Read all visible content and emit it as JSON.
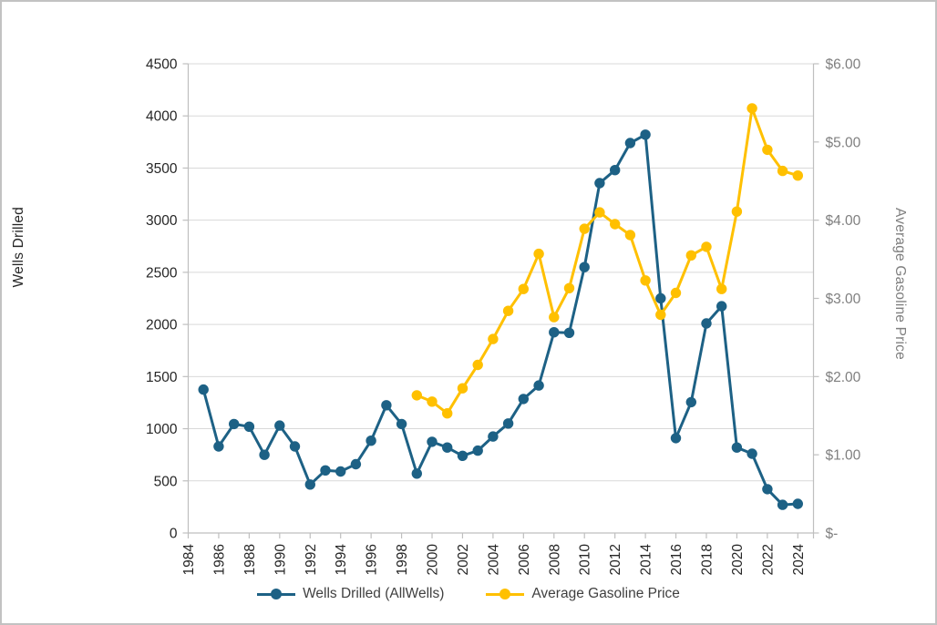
{
  "chart_data": {
    "type": "line",
    "title": "",
    "legend_position": "bottom",
    "grid": "horizontal",
    "x_axis": {
      "tick_labels": [
        "1984",
        "1986",
        "1988",
        "1990",
        "1992",
        "1994",
        "1996",
        "1998",
        "2000",
        "2002",
        "2004",
        "2006",
        "2008",
        "2010",
        "2012",
        "2014",
        "2016",
        "2018",
        "2020",
        "2022",
        "2024"
      ],
      "start_year": 1984,
      "end_year": 2024,
      "label_rotation_deg": -90
    },
    "y_axis_left": {
      "label": "Wells Drilled",
      "min": 0,
      "max": 4500,
      "step": 500,
      "tick_labels": [
        "0",
        "500",
        "1000",
        "1500",
        "2000",
        "2500",
        "3000",
        "3500",
        "4000",
        "4500"
      ]
    },
    "y_axis_right": {
      "label": "Average Gasoline Price",
      "min": 0,
      "max": 6,
      "step": 1,
      "tick_labels": [
        "$-",
        "$1.00",
        "$2.00",
        "$3.00",
        "$4.00",
        "$5.00",
        "$6.00"
      ]
    },
    "series": [
      {
        "name": "Wells Drilled (AllWells)",
        "color": "#1d6185",
        "axis": "left",
        "x": [
          1985,
          1986,
          1987,
          1988,
          1989,
          1990,
          1991,
          1992,
          1993,
          1994,
          1995,
          1996,
          1997,
          1998,
          1999,
          2000,
          2001,
          2002,
          2003,
          2004,
          2005,
          2006,
          2007,
          2008,
          2009,
          2010,
          2011,
          2012,
          2013,
          2014,
          2015,
          2016,
          2017,
          2018,
          2019,
          2020,
          2021,
          2022,
          2023,
          2024
        ],
        "values": [
          1375,
          830,
          1045,
          1020,
          750,
          1030,
          830,
          465,
          600,
          590,
          660,
          885,
          1225,
          1045,
          570,
          875,
          820,
          740,
          790,
          925,
          1050,
          1285,
          1415,
          1925,
          1920,
          2550,
          3355,
          3480,
          3740,
          3820,
          2250,
          910,
          1255,
          2010,
          2175,
          820,
          760,
          420,
          270,
          280
        ]
      },
      {
        "name": "Average Gasoline Price",
        "color": "#ffc000",
        "axis": "right",
        "x": [
          1999,
          2000,
          2001,
          2002,
          2003,
          2004,
          2005,
          2006,
          2007,
          2008,
          2009,
          2010,
          2011,
          2012,
          2013,
          2014,
          2015,
          2016,
          2017,
          2018,
          2019,
          2020,
          2021,
          2022,
          2023,
          2024
        ],
        "values": [
          1.76,
          1.68,
          1.53,
          1.85,
          2.15,
          2.48,
          2.84,
          3.12,
          3.57,
          2.76,
          3.13,
          3.89,
          4.1,
          3.95,
          3.81,
          3.23,
          2.79,
          3.07,
          3.55,
          3.66,
          3.12,
          4.11,
          5.43,
          4.9,
          4.63,
          4.57
        ]
      }
    ],
    "colors": {
      "gridline": "#d9d9d9",
      "axis_line": "#bfbfbf",
      "left_tick_text": "#262626",
      "right_tick_text": "#7f7f7f",
      "x_tick_text": "#262626"
    }
  }
}
